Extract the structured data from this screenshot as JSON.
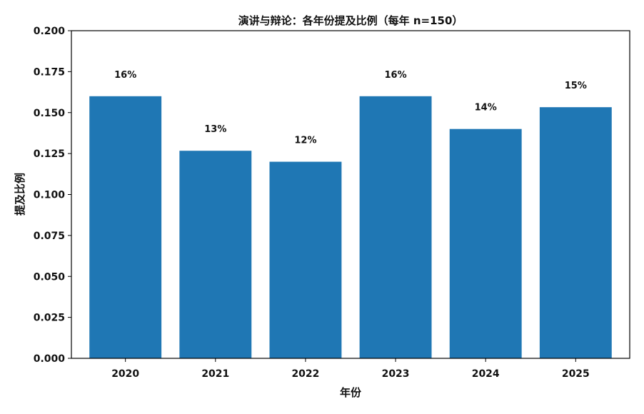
{
  "chart_data": {
    "type": "bar",
    "title": "演讲与辩论：各年份提及比例（每年 n=150）",
    "xlabel": "年份",
    "ylabel": "提及比例",
    "categories": [
      "2020",
      "2021",
      "2022",
      "2023",
      "2024",
      "2025"
    ],
    "values": [
      0.16,
      0.1267,
      0.12,
      0.16,
      0.14,
      0.1533
    ],
    "data_labels": [
      "16%",
      "13%",
      "12%",
      "16%",
      "14%",
      "15%"
    ],
    "ylim": [
      0,
      0.2
    ],
    "yticks": [
      "0.000",
      "0.025",
      "0.050",
      "0.075",
      "0.100",
      "0.125",
      "0.150",
      "0.175",
      "0.200"
    ],
    "grid": false,
    "legend": "none",
    "bar_color": "#1f77b4"
  }
}
